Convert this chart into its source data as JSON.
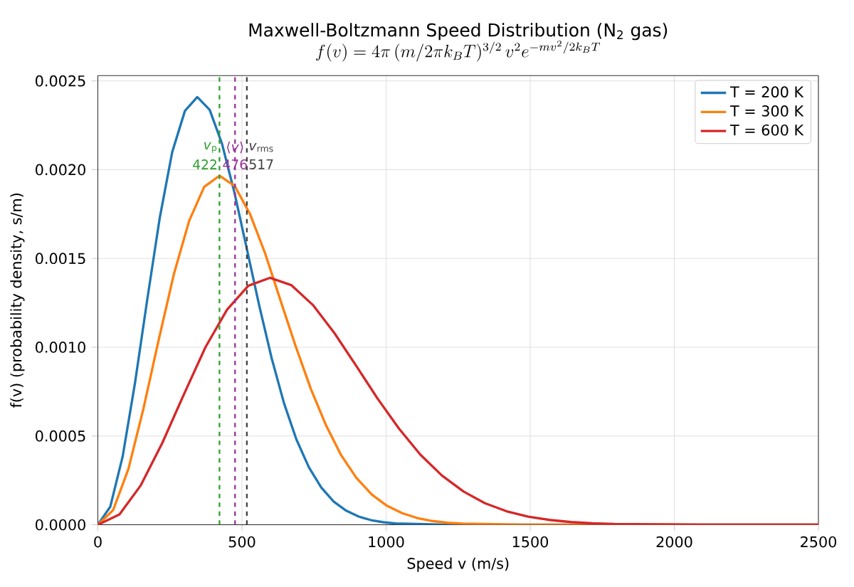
{
  "chart_data": {
    "type": "line",
    "title": "Maxwell-Boltzmann Speed Distribution (N$_{2}$ gas)",
    "subtitle": "f(v) = 4\\pi\\,(m/2\\pi k_B T)^{3/2}\\,v^2 e^{-mv^2/2k_B T}",
    "xlabel": "Speed v (m/s)",
    "ylabel": "f(v)  (probability density, s/m)",
    "series": [
      {
        "name": "T = 200 K",
        "color": "#1f77b4",
        "x": [
          0,
          43,
          86,
          129,
          172,
          215,
          258,
          302,
          345,
          388,
          431,
          474,
          517,
          560,
          603,
          646,
          689,
          732,
          775,
          818,
          862,
          905,
          948,
          991,
          1034,
          1206,
          1378,
          2500
        ],
        "values": [
          0,
          0.000101,
          0.000384,
          0.0008,
          0.001275,
          0.001731,
          0.002099,
          0.002331,
          0.002409,
          0.002337,
          0.002145,
          0.00187,
          0.001553,
          0.001234,
          0.000938,
          0.000684,
          0.00048,
          0.000324,
          0.00021,
          0.000131,
          7.9e-05,
          4.6e-05,
          2.6e-05,
          1.4e-05,
          7e-06,
          0,
          0,
          0
        ]
      },
      {
        "name": "T = 300 K",
        "color": "#ff7f0e",
        "x": [
          0,
          53,
          106,
          158,
          211,
          264,
          317,
          369,
          422,
          475,
          528,
          581,
          633,
          686,
          739,
          792,
          844,
          897,
          950,
          1003,
          1056,
          1108,
          1161,
          1214,
          1267,
          1478,
          1689,
          2500
        ],
        "values": [
          0,
          8.2e-05,
          0.000314,
          0.000653,
          0.001041,
          0.001413,
          0.001713,
          0.001903,
          0.001966,
          0.001908,
          0.00175,
          0.001526,
          0.001267,
          0.001007,
          0.000765,
          0.000559,
          0.000392,
          0.000264,
          0.000171,
          0.000107,
          6.5e-05,
          3.8e-05,
          2.1e-05,
          1.1e-05,
          6e-06,
          0,
          0,
          0
        ]
      },
      {
        "name": "T = 600 K",
        "color": "#d62728",
        "x": [
          0,
          75,
          149,
          224,
          299,
          373,
          448,
          522,
          597,
          672,
          746,
          821,
          896,
          970,
          1045,
          1119,
          1194,
          1269,
          1343,
          1418,
          1493,
          1567,
          1642,
          1716,
          1791,
          2090,
          2388,
          2500
        ],
        "values": [
          0,
          5.8e-05,
          0.000222,
          0.000462,
          0.000736,
          0.000999,
          0.001211,
          0.001346,
          0.001391,
          0.001349,
          0.001238,
          0.001079,
          0.000896,
          0.000712,
          0.000541,
          0.000395,
          0.000277,
          0.000187,
          0.000121,
          7.6e-05,
          4.6e-05,
          2.7e-05,
          1.5e-05,
          8e-06,
          4e-06,
          0,
          0,
          0
        ]
      }
    ],
    "xlim": [
      0,
      2500
    ],
    "xticks": [
      0,
      500,
      1000,
      1500,
      2000,
      2500
    ],
    "ylim": [
      0,
      0.00253
    ],
    "yticks": [
      {
        "value": 0,
        "label": "0.0000"
      },
      {
        "value": 0.0005,
        "label": "0.0005"
      },
      {
        "value": 0.001,
        "label": "0.0010"
      },
      {
        "value": 0.0015,
        "label": "0.0015"
      },
      {
        "value": 0.002,
        "label": "0.0020"
      },
      {
        "value": 0.0025,
        "label": "0.0025"
      }
    ],
    "ref_lines": [
      {
        "axis": "x",
        "value": 422,
        "label": "*v*$_{p}$",
        "color": "#2ca02c",
        "line_style": "dashed"
      },
      {
        "axis": "x",
        "value": 476,
        "label": "⟨*v*⟩",
        "color": "#993399",
        "line_style": "dashed"
      },
      {
        "axis": "x",
        "value": 517,
        "label": "*v*$_{rms}$",
        "color": "#404040",
        "line_style": "dashed"
      }
    ],
    "annotations": [
      {
        "text": "422",
        "x": 422,
        "y": 0.00203
      },
      {
        "text": "476",
        "x": 476,
        "y": 0.00203
      },
      {
        "text": "517",
        "x": 517,
        "y": 0.00203
      }
    ],
    "grid": true,
    "legend": "top right",
    "marker": "none",
    "line_style": "solid"
  }
}
